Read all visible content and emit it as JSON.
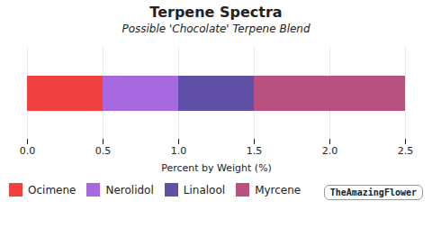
{
  "chart_data": {
    "type": "bar",
    "orientation": "horizontal",
    "stacked": true,
    "title": "Terpene Spectra",
    "subtitle": "Possible 'Chocolate' Terpene Blend",
    "xlabel": "Percent by Weight (%)",
    "categories": [
      null
    ],
    "series": [
      {
        "name": "Ocimene",
        "color": "#f04040",
        "values": [
          0.5
        ]
      },
      {
        "name": "Nerolidol",
        "color": "#a868e0",
        "values": [
          0.5
        ]
      },
      {
        "name": "Linalool",
        "color": "#6050a8",
        "values": [
          0.5
        ]
      },
      {
        "name": "Myrcene",
        "color": "#b85080",
        "values": [
          1.0
        ]
      }
    ],
    "xlim": [
      0,
      2.5
    ],
    "xticks": [
      {
        "value": 0,
        "label": "0.0"
      },
      {
        "value": 0.5,
        "label": "0.5"
      },
      {
        "value": 1,
        "label": "1.0"
      },
      {
        "value": 1.5,
        "label": "1.5"
      },
      {
        "value": 2,
        "label": "2.0"
      },
      {
        "value": 2.5,
        "label": "2.5"
      }
    ],
    "grid": true,
    "legend": "bottom",
    "annotations": [
      "TheAmazingFlower"
    ]
  }
}
